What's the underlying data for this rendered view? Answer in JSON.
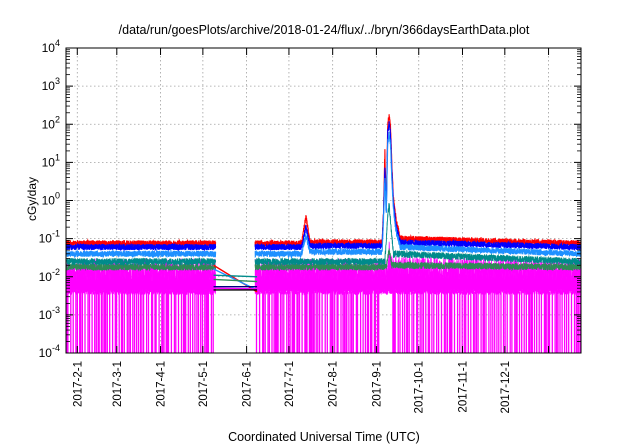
{
  "chart_data": {
    "type": "line",
    "title": "/data/run/goesPlots/archive/2018-01-24/flux/../bryn/366daysEarthData.plot",
    "xlabel": "Coordinated Universal Time (UTC)",
    "ylabel": "cGy/day",
    "y_scale": "log",
    "ylim": [
      0.0001,
      10000
    ],
    "y_ticks": [
      {
        "value": 0.0001,
        "base": "10",
        "exp": "-4"
      },
      {
        "value": 0.001,
        "base": "10",
        "exp": "-3"
      },
      {
        "value": 0.01,
        "base": "10",
        "exp": "-2"
      },
      {
        "value": 0.1,
        "base": "10",
        "exp": "-1"
      },
      {
        "value": 1,
        "base": "10",
        "exp": "0"
      },
      {
        "value": 10,
        "base": "10",
        "exp": "1"
      },
      {
        "value": 100,
        "base": "10",
        "exp": "2"
      },
      {
        "value": 1000,
        "base": "10",
        "exp": "3"
      },
      {
        "value": 10000,
        "base": "10",
        "exp": "4"
      }
    ],
    "xlim": [
      "2017-01-24",
      "2018-01-24"
    ],
    "x_tick_labels": [
      {
        "date": "2017-02-01",
        "label": "2017-2-1"
      },
      {
        "date": "2017-03-01",
        "label": "2017-3-1"
      },
      {
        "date": "2017-04-01",
        "label": "2017-4-1"
      },
      {
        "date": "2017-05-01",
        "label": "2017-5-1"
      },
      {
        "date": "2017-06-01",
        "label": "2017-6-1"
      },
      {
        "date": "2017-07-01",
        "label": "2017-7-1"
      },
      {
        "date": "2017-08-01",
        "label": "2017-8-1"
      },
      {
        "date": "2017-09-01",
        "label": "2017-9-1"
      },
      {
        "date": "2017-10-01",
        "label": "2017-10-1"
      },
      {
        "date": "2017-11-01",
        "label": "2017-11-1"
      },
      {
        "date": "2017-12-01",
        "label": "2017-12-1"
      }
    ],
    "x_grid_dates": [
      "2017-02-01",
      "2017-03-01",
      "2017-04-01",
      "2017-05-01",
      "2017-06-01",
      "2017-07-01",
      "2017-08-01",
      "2017-09-01",
      "2017-10-01",
      "2017-11-01",
      "2017-12-01",
      "2018-01-01"
    ],
    "grid": true,
    "data_gap": [
      "2017-05-10",
      "2017-06-07"
    ],
    "series": [
      {
        "color": "#ff0000",
        "baseline": 0.075,
        "points": [
          [
            "2017-01-24",
            0.075
          ],
          [
            "2017-05-10",
            0.075
          ],
          [
            "2017-06-07",
            0.075
          ],
          [
            "2017-07-10",
            0.075
          ],
          [
            "2017-07-13",
            0.38
          ],
          [
            "2017-07-16",
            0.08
          ],
          [
            "2017-09-05",
            0.08
          ],
          [
            "2017-09-06",
            0.5
          ],
          [
            "2017-09-07",
            19
          ],
          [
            "2017-09-08",
            0.6
          ],
          [
            "2017-09-09",
            100
          ],
          [
            "2017-09-10",
            160
          ],
          [
            "2017-09-11",
            90
          ],
          [
            "2017-09-12",
            8
          ],
          [
            "2017-09-13",
            1.2
          ],
          [
            "2017-09-15",
            0.3
          ],
          [
            "2017-09-18",
            0.1
          ],
          [
            "2018-01-24",
            0.075
          ]
        ]
      },
      {
        "color": "#0000ff",
        "baseline": 0.06,
        "points": [
          [
            "2017-01-24",
            0.06
          ],
          [
            "2017-05-10",
            0.06
          ],
          [
            "2017-06-07",
            0.06
          ],
          [
            "2017-07-10",
            0.06
          ],
          [
            "2017-07-13",
            0.2
          ],
          [
            "2017-07-16",
            0.065
          ],
          [
            "2017-09-05",
            0.065
          ],
          [
            "2017-09-06",
            0.4
          ],
          [
            "2017-09-07",
            7
          ],
          [
            "2017-09-08",
            0.5
          ],
          [
            "2017-09-09",
            60
          ],
          [
            "2017-09-10",
            100
          ],
          [
            "2017-09-11",
            55
          ],
          [
            "2017-09-12",
            5
          ],
          [
            "2017-09-13",
            0.9
          ],
          [
            "2017-09-15",
            0.2
          ],
          [
            "2017-09-18",
            0.08
          ],
          [
            "2018-01-24",
            0.06
          ]
        ]
      },
      {
        "color": "#1e90ff",
        "baseline": 0.04,
        "points": [
          [
            "2017-01-24",
            0.04
          ],
          [
            "2017-05-10",
            0.04
          ],
          [
            "2017-06-07",
            0.04
          ],
          [
            "2017-07-10",
            0.04
          ],
          [
            "2017-07-13",
            0.12
          ],
          [
            "2017-07-16",
            0.045
          ],
          [
            "2017-09-05",
            0.045
          ],
          [
            "2017-09-06",
            0.3
          ],
          [
            "2017-09-07",
            4
          ],
          [
            "2017-09-08",
            0.4
          ],
          [
            "2017-09-09",
            35
          ],
          [
            "2017-09-10",
            55
          ],
          [
            "2017-09-11",
            30
          ],
          [
            "2017-09-12",
            3
          ],
          [
            "2017-09-13",
            0.6
          ],
          [
            "2017-09-15",
            0.15
          ],
          [
            "2017-09-18",
            0.06
          ],
          [
            "2018-01-24",
            0.04
          ]
        ]
      },
      {
        "color": "#008b8b",
        "baseline": 0.025,
        "points": [
          [
            "2017-01-24",
            0.025
          ],
          [
            "2017-05-10",
            0.025
          ],
          [
            "2017-06-07",
            0.025
          ],
          [
            "2017-07-10",
            0.025
          ],
          [
            "2017-09-07",
            0.025
          ],
          [
            "2017-09-09",
            0.4
          ],
          [
            "2017-09-10",
            0.8
          ],
          [
            "2017-09-11",
            0.3
          ],
          [
            "2017-09-13",
            0.04
          ],
          [
            "2018-01-24",
            0.025
          ]
        ]
      },
      {
        "color": "#2e8b57",
        "baseline": 0.018,
        "points": [
          [
            "2017-01-24",
            0.018
          ],
          [
            "2017-05-10",
            0.018
          ],
          [
            "2017-06-07",
            0.018
          ],
          [
            "2017-09-08",
            0.018
          ],
          [
            "2017-09-10",
            0.05
          ],
          [
            "2017-09-12",
            0.02
          ],
          [
            "2018-01-24",
            0.018
          ]
        ]
      },
      {
        "color": "#ff00ff",
        "baseline": 0.01,
        "points": [
          [
            "2017-01-24",
            0.01
          ],
          [
            "2017-05-10",
            0.01
          ],
          [
            "2017-06-07",
            0.01
          ],
          [
            "2017-09-09",
            0.01
          ],
          [
            "2017-09-10",
            0.04
          ],
          [
            "2017-09-11",
            0.012
          ],
          [
            "2018-01-24",
            0.01
          ]
        ]
      }
    ],
    "gap_lines": [
      {
        "color": "#ff0000",
        "y0": 0.02,
        "y1": 0.004
      },
      {
        "color": "#1e90ff",
        "y0": 0.016,
        "y1": 0.0045
      },
      {
        "color": "#008b8b",
        "y0": 0.011,
        "y1": 0.01
      },
      {
        "color": "#2e8b57",
        "y0": 0.0085,
        "y1": 0.0075
      },
      {
        "color": "#000080",
        "y0": 0.0055,
        "y1": 0.0055
      },
      {
        "color": "#ff00ff",
        "y0": 0.005,
        "y1": 0.0048
      },
      {
        "color": "#000000",
        "y0": 0.0045,
        "y1": 0.0045
      }
    ]
  }
}
